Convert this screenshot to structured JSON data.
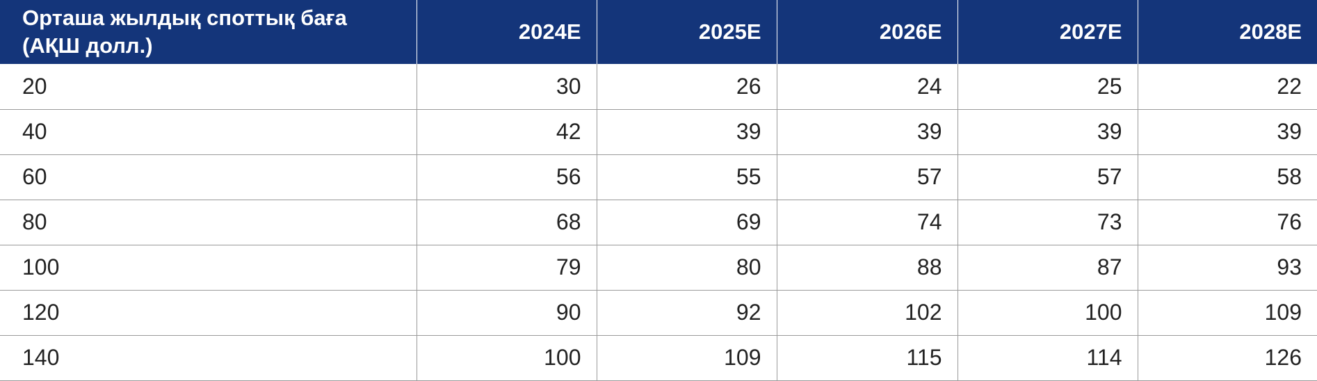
{
  "table": {
    "headers": [
      "Орташа жылдық споттық баға (АҚШ долл.)",
      "2024E",
      "2025E",
      "2026E",
      "2027E",
      "2028E"
    ],
    "rows": [
      [
        "20",
        "30",
        "26",
        "24",
        "25",
        "22"
      ],
      [
        "40",
        "42",
        "39",
        "39",
        "39",
        "39"
      ],
      [
        "60",
        "56",
        "55",
        "57",
        "57",
        "58"
      ],
      [
        "80",
        "68",
        "69",
        "74",
        "73",
        "76"
      ],
      [
        "100",
        "79",
        "80",
        "88",
        "87",
        "93"
      ],
      [
        "120",
        "90",
        "92",
        "102",
        "100",
        "109"
      ],
      [
        "140",
        "100",
        "109",
        "115",
        "114",
        "126"
      ]
    ]
  },
  "colors": {
    "header_background": "#14357a",
    "header_text": "#ffffff",
    "grid_line": "#9a9a9a",
    "cell_text": "#222222"
  }
}
